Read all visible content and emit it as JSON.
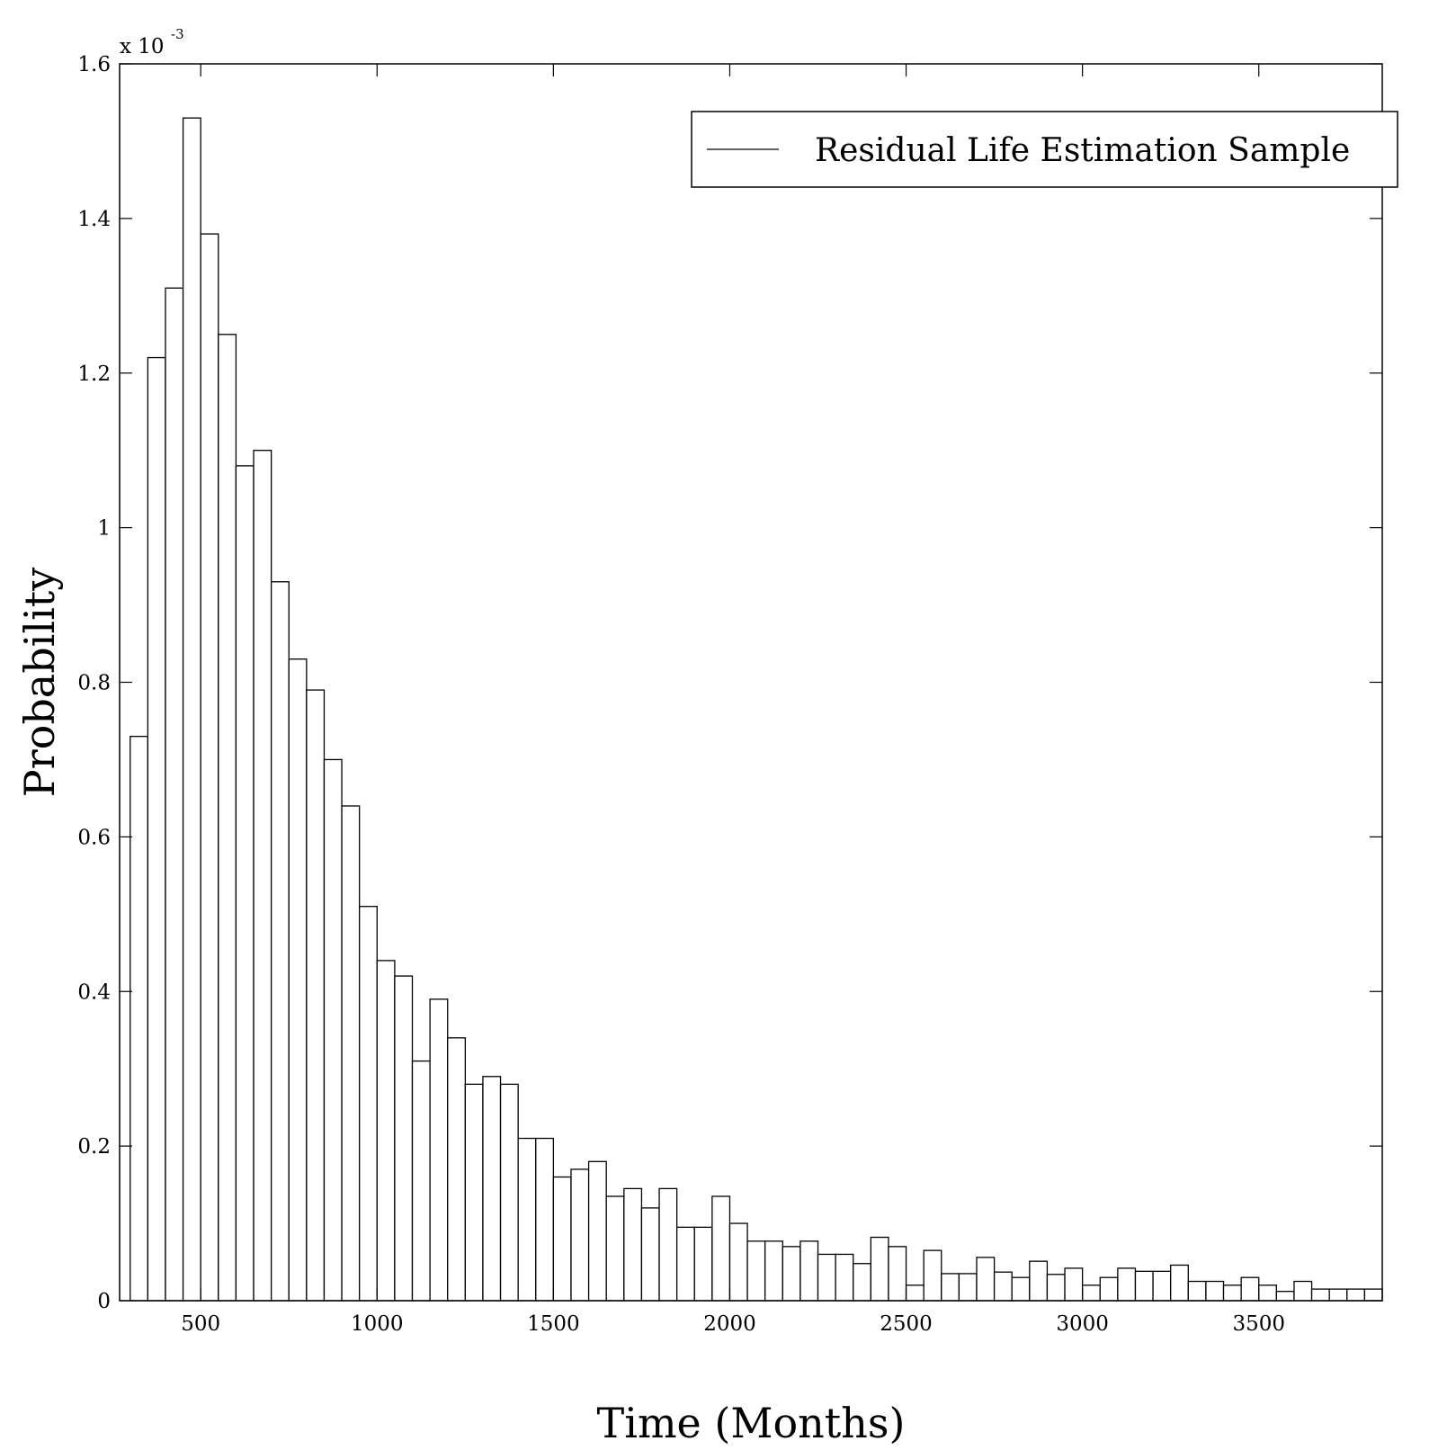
{
  "chart_data": {
    "type": "bar",
    "xlabel": "Time (Months)",
    "ylabel": "Probability",
    "exponent_label": {
      "base": "x 10",
      "power": "-3"
    },
    "legend": {
      "label": "Residual Life Estimation Sample",
      "position": "top-right"
    },
    "xlim": [
      270,
      3850
    ],
    "ylim": [
      0,
      1.6
    ],
    "x_ticks": [
      500,
      1000,
      1500,
      2000,
      2500,
      3000,
      3500
    ],
    "x_tick_labels": [
      "500",
      "1000",
      "1500",
      "2000",
      "2500",
      "3000",
      "3500"
    ],
    "y_ticks": [
      0,
      0.2,
      0.4,
      0.6,
      0.8,
      1.0,
      1.2,
      1.4,
      1.6
    ],
    "y_tick_labels": [
      "0",
      "0.2",
      "0.4",
      "0.6",
      "0.8",
      "1",
      "1.2",
      "1.4",
      "1.6"
    ],
    "bin_start": 300,
    "bin_width": 50,
    "values": [
      0.73,
      1.22,
      1.31,
      1.53,
      1.38,
      1.25,
      1.08,
      1.1,
      0.93,
      0.83,
      0.79,
      0.7,
      0.64,
      0.51,
      0.44,
      0.42,
      0.31,
      0.39,
      0.34,
      0.28,
      0.29,
      0.28,
      0.21,
      0.21,
      0.16,
      0.17,
      0.18,
      0.135,
      0.145,
      0.12,
      0.145,
      0.095,
      0.095,
      0.135,
      0.1,
      0.077,
      0.077,
      0.07,
      0.077,
      0.06,
      0.06,
      0.048,
      0.082,
      0.07,
      0.02,
      0.065,
      0.035,
      0.035,
      0.056,
      0.037,
      0.03,
      0.051,
      0.034,
      0.042,
      0.02,
      0.03,
      0.042,
      0.038,
      0.038,
      0.046,
      0.025,
      0.025,
      0.02,
      0.03,
      0.02,
      0.012,
      0.025,
      0.015,
      0.015,
      0.015,
      0.015
    ],
    "colors": {
      "bar_fill": "#ffffff",
      "bar_stroke": "#000000",
      "axis": "#000000"
    }
  }
}
